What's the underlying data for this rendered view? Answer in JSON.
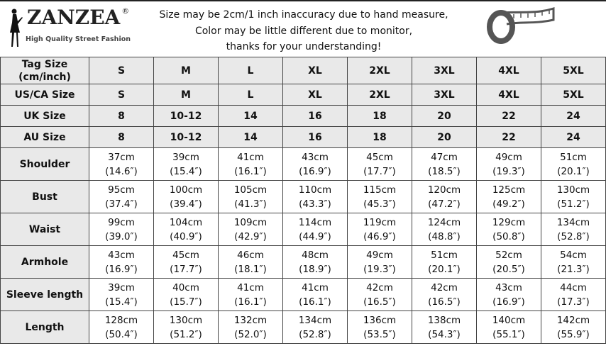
{
  "brand": {
    "name": "ZANZEA",
    "registered": "®",
    "tagline": "High Quality Street Fashion"
  },
  "notice": [
    "Size may be 2cm/1 inch inaccuracy due to hand measure,",
    "Color may be little different due to monitor,",
    "thanks for your understanding!"
  ],
  "icons": {
    "logo_figure": "woman-silhouette-icon",
    "tape": "measuring-tape-icon"
  },
  "size_rows": [
    {
      "label": "Tag Size (cm/inch)",
      "values": [
        "S",
        "M",
        "L",
        "XL",
        "2XL",
        "3XL",
        "4XL",
        "5XL"
      ]
    },
    {
      "label": "US/CA Size",
      "values": [
        "S",
        "M",
        "L",
        "XL",
        "2XL",
        "3XL",
        "4XL",
        "5XL"
      ]
    },
    {
      "label": "UK Size",
      "values": [
        "8",
        "10-12",
        "14",
        "16",
        "18",
        "20",
        "22",
        "24"
      ]
    },
    {
      "label": "AU Size",
      "values": [
        "8",
        "10-12",
        "14",
        "16",
        "18",
        "20",
        "22",
        "24"
      ]
    }
  ],
  "measure_rows": [
    {
      "label": "Shoulder",
      "cm": [
        "37cm",
        "39cm",
        "41cm",
        "43cm",
        "45cm",
        "47cm",
        "49cm",
        "51cm"
      ],
      "in": [
        "(14.6″)",
        "(15.4″)",
        "(16.1″)",
        "(16.9″)",
        "(17.7″)",
        "(18.5″)",
        "(19.3″)",
        "(20.1″)"
      ]
    },
    {
      "label": "Bust",
      "cm": [
        "95cm",
        "100cm",
        "105cm",
        "110cm",
        "115cm",
        "120cm",
        "125cm",
        "130cm"
      ],
      "in": [
        "(37.4″)",
        "(39.4″)",
        "(41.3″)",
        "(43.3″)",
        "(45.3″)",
        "(47.2″)",
        "(49.2″)",
        "(51.2″)"
      ]
    },
    {
      "label": "Waist",
      "cm": [
        "99cm",
        "104cm",
        "109cm",
        "114cm",
        "119cm",
        "124cm",
        "129cm",
        "134cm"
      ],
      "in": [
        "(39.0″)",
        "(40.9″)",
        "(42.9″)",
        "(44.9″)",
        "(46.9″)",
        "(48.8″)",
        "(50.8″)",
        "(52.8″)"
      ]
    },
    {
      "label": "Armhole",
      "cm": [
        "43cm",
        "45cm",
        "46cm",
        "48cm",
        "49cm",
        "51cm",
        "52cm",
        "54cm"
      ],
      "in": [
        "(16.9″)",
        "(17.7″)",
        "(18.1″)",
        "(18.9″)",
        "(19.3″)",
        "(20.1″)",
        "(20.5″)",
        "(21.3″)"
      ]
    },
    {
      "label": "Sleeve length",
      "cm": [
        "39cm",
        "40cm",
        "41cm",
        "41cm",
        "42cm",
        "42cm",
        "43cm",
        "44cm"
      ],
      "in": [
        "(15.4″)",
        "(15.7″)",
        "(16.1″)",
        "(16.1″)",
        "(16.5″)",
        "(16.5″)",
        "(16.9″)",
        "(17.3″)"
      ]
    },
    {
      "label": "Length",
      "cm": [
        "128cm",
        "130cm",
        "132cm",
        "134cm",
        "136cm",
        "138cm",
        "140cm",
        "142cm"
      ],
      "in": [
        "(50.4″)",
        "(51.2″)",
        "(52.0″)",
        "(52.8″)",
        "(53.5″)",
        "(54.3″)",
        "(55.1″)",
        "(55.9″)"
      ]
    }
  ]
}
